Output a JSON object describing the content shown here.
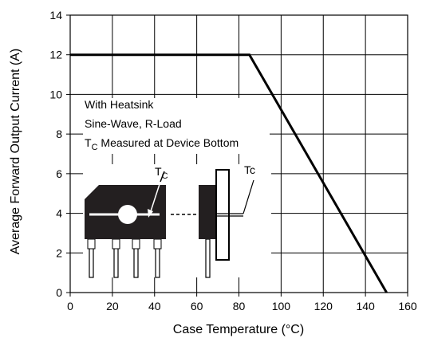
{
  "chart_data": {
    "type": "line",
    "xlabel": "Case Temperature (°C)",
    "ylabel": "Average Forward Output Current (A)",
    "xlim": [
      0,
      160
    ],
    "ylim": [
      0,
      14
    ],
    "x_ticks": [
      "0",
      "20",
      "40",
      "60",
      "80",
      "100",
      "120",
      "140",
      "160"
    ],
    "y_ticks": [
      "0",
      "2",
      "4",
      "6",
      "8",
      "10",
      "12",
      "14"
    ],
    "grid": true,
    "series": [
      {
        "x": [
          0,
          85,
          150
        ],
        "y": [
          12,
          12,
          0
        ]
      }
    ],
    "annotations": {
      "line1": "With Heatsink",
      "line2": "Sine-Wave, R-Load",
      "line3_prefix": "T",
      "line3_sub": "C",
      "line3_rest": " Measured at Device Bottom",
      "tc_label_1": "T",
      "tc_label_1_sub": "C",
      "tc_label_2": "Tc"
    },
    "colors": {
      "line": "#000000",
      "grid": "#000000",
      "package": "#231f20"
    }
  }
}
